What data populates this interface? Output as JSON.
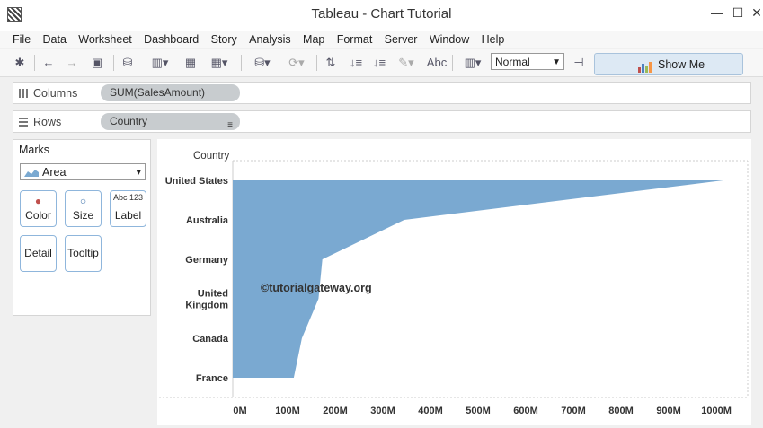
{
  "window": {
    "title": "Tableau - Chart Tutorial",
    "minimize": "—",
    "maximize": "☐",
    "close": "✕"
  },
  "menu": [
    "File",
    "Data",
    "Worksheet",
    "Dashboard",
    "Story",
    "Analysis",
    "Map",
    "Format",
    "Server",
    "Window",
    "Help"
  ],
  "toolbar": {
    "label_button": "Abc",
    "fit_value": "Normal",
    "show_me": "Show Me"
  },
  "shelves": {
    "columns": {
      "label": "Columns",
      "pill": "SUM(SalesAmount)"
    },
    "rows": {
      "label": "Rows",
      "pill": "Country"
    }
  },
  "marks": {
    "title": "Marks",
    "type": "Area",
    "buttons": {
      "color": "Color",
      "size": "Size",
      "label": "Label",
      "label_icon": "Abc 123",
      "detail": "Detail",
      "tooltip": "Tooltip"
    }
  },
  "watermark": "©tutorialgateway.org",
  "chart_data": {
    "type": "area",
    "orientation": "horizontal",
    "header": "Country",
    "categories": [
      "United States",
      "Australia",
      "Germany",
      "United Kingdom",
      "Canada",
      "France"
    ],
    "category_lines": [
      [
        "United States"
      ],
      [
        "Australia"
      ],
      [
        "Germany"
      ],
      [
        "United",
        "Kingdom"
      ],
      [
        "Canada"
      ],
      [
        "France"
      ]
    ],
    "values": [
      1030,
      360,
      188,
      180,
      145,
      128
    ],
    "value_unit": "M",
    "xlim": [
      0,
      1030
    ],
    "x_ticks": [
      0,
      100,
      200,
      300,
      400,
      500,
      600,
      700,
      800,
      900,
      1000
    ],
    "x_tick_labels": [
      "0M",
      "100M",
      "200M",
      "300M",
      "400M",
      "500M",
      "600M",
      "700M",
      "800M",
      "900M",
      "1000M"
    ],
    "fill_color": "#7aa9d1",
    "grid": "dashed-frame"
  }
}
